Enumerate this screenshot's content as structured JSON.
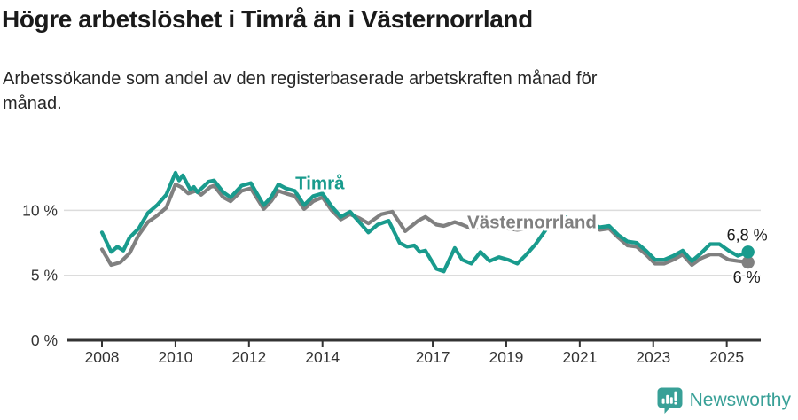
{
  "header": {
    "title": "Högre arbetslöshet i Timrå än i Västernorrland",
    "subtitle": "Arbetssökande som andel av den registerbaserade arbetskraften månad för månad."
  },
  "footer": {
    "brand": "Newsworthy",
    "brand_color": "#38a097"
  },
  "chart_data": {
    "type": "line",
    "title": "Högre arbetslöshet i Timrå än i Västernorrland",
    "subtitle": "Arbetssökande som andel av den registerbaserade arbetskraften månad för månad.",
    "xlabel": "",
    "ylabel": "",
    "legend_position": "inline-labels",
    "x_axis": {
      "ticks": [
        2008,
        2010,
        2012,
        2014,
        2017,
        2019,
        2021,
        2023,
        2025
      ],
      "range": [
        2008,
        2025.75
      ]
    },
    "y_axis": {
      "ticks": [
        {
          "value": 0,
          "label": "0 %"
        },
        {
          "value": 5,
          "label": "5 %"
        },
        {
          "value": 10,
          "label": "10 %"
        }
      ],
      "range": [
        0,
        13.6
      ],
      "grid": true
    },
    "colors": {
      "timra": "#199b8d",
      "vasternorrland": "#808080",
      "grid": "#dcdcdc",
      "axis": "#333333",
      "tick_text": "#333333",
      "end_label_text": "#1a1a1a"
    },
    "series": [
      {
        "name": "Västernorrland",
        "color": "#808080",
        "end_label": "6 %",
        "end_value": 6.0,
        "label_anchor": {
          "x": 2019.7,
          "y": 8.62
        },
        "points": [
          [
            2008.0,
            7.0
          ],
          [
            2008.25,
            5.8
          ],
          [
            2008.5,
            6.0
          ],
          [
            2008.75,
            6.7
          ],
          [
            2009.0,
            8.1
          ],
          [
            2009.25,
            9.1
          ],
          [
            2009.5,
            9.6
          ],
          [
            2009.75,
            10.2
          ],
          [
            2010.0,
            12.0
          ],
          [
            2010.15,
            11.8
          ],
          [
            2010.35,
            11.3
          ],
          [
            2010.55,
            11.5
          ],
          [
            2010.7,
            11.2
          ],
          [
            2010.95,
            11.8
          ],
          [
            2011.05,
            11.9
          ],
          [
            2011.3,
            11.0
          ],
          [
            2011.5,
            10.7
          ],
          [
            2011.8,
            11.5
          ],
          [
            2012.05,
            11.7
          ],
          [
            2012.4,
            10.1
          ],
          [
            2012.6,
            10.7
          ],
          [
            2012.8,
            11.5
          ],
          [
            2013.0,
            11.3
          ],
          [
            2013.25,
            11.1
          ],
          [
            2013.5,
            10.1
          ],
          [
            2013.75,
            10.7
          ],
          [
            2014.0,
            11.0
          ],
          [
            2014.25,
            10.0
          ],
          [
            2014.5,
            9.3
          ],
          [
            2014.75,
            9.7
          ],
          [
            2015.0,
            9.4
          ],
          [
            2015.25,
            9.0
          ],
          [
            2015.6,
            9.7
          ],
          [
            2015.9,
            9.9
          ],
          [
            2016.25,
            8.4
          ],
          [
            2016.6,
            9.2
          ],
          [
            2016.8,
            9.5
          ],
          [
            2017.1,
            8.9
          ],
          [
            2017.3,
            8.8
          ],
          [
            2017.6,
            9.1
          ],
          [
            2017.8,
            8.9
          ],
          [
            2018.05,
            8.6
          ],
          [
            2018.3,
            8.7
          ],
          [
            2018.55,
            8.9
          ],
          [
            2018.8,
            8.7
          ],
          [
            2019.05,
            8.6
          ],
          [
            2019.3,
            8.5
          ],
          [
            2019.55,
            8.6
          ],
          [
            2019.8,
            8.9
          ],
          [
            2020.05,
            9.0
          ],
          [
            2020.3,
            9.4
          ],
          [
            2020.55,
            9.5
          ],
          [
            2020.8,
            9.3
          ],
          [
            2021.05,
            9.2
          ],
          [
            2021.3,
            8.9
          ],
          [
            2021.55,
            8.5
          ],
          [
            2021.8,
            8.6
          ],
          [
            2022.05,
            7.9
          ],
          [
            2022.3,
            7.3
          ],
          [
            2022.55,
            7.2
          ],
          [
            2022.8,
            6.6
          ],
          [
            2023.05,
            5.9
          ],
          [
            2023.3,
            5.9
          ],
          [
            2023.55,
            6.2
          ],
          [
            2023.8,
            6.6
          ],
          [
            2024.05,
            5.8
          ],
          [
            2024.3,
            6.3
          ],
          [
            2024.55,
            6.6
          ],
          [
            2024.8,
            6.6
          ],
          [
            2025.05,
            6.2
          ],
          [
            2025.3,
            6.1
          ],
          [
            2025.58,
            6.0
          ]
        ]
      },
      {
        "name": "Timrå",
        "color": "#199b8d",
        "end_label": "6,8 %",
        "end_value": 6.8,
        "label_anchor": {
          "x": 2013.93,
          "y": 11.62
        },
        "points": [
          [
            2008.0,
            8.3
          ],
          [
            2008.25,
            6.8
          ],
          [
            2008.42,
            7.2
          ],
          [
            2008.58,
            6.9
          ],
          [
            2008.75,
            7.9
          ],
          [
            2009.0,
            8.6
          ],
          [
            2009.25,
            9.8
          ],
          [
            2009.5,
            10.4
          ],
          [
            2009.75,
            11.2
          ],
          [
            2010.0,
            12.9
          ],
          [
            2010.1,
            12.3
          ],
          [
            2010.2,
            12.7
          ],
          [
            2010.4,
            11.6
          ],
          [
            2010.5,
            11.8
          ],
          [
            2010.6,
            11.4
          ],
          [
            2010.9,
            12.2
          ],
          [
            2011.05,
            12.3
          ],
          [
            2011.3,
            11.4
          ],
          [
            2011.5,
            11.0
          ],
          [
            2011.8,
            11.9
          ],
          [
            2012.05,
            12.1
          ],
          [
            2012.4,
            10.4
          ],
          [
            2012.6,
            11.0
          ],
          [
            2012.8,
            12.0
          ],
          [
            2013.0,
            11.7
          ],
          [
            2013.25,
            11.5
          ],
          [
            2013.5,
            10.4
          ],
          [
            2013.75,
            11.1
          ],
          [
            2014.0,
            11.3
          ],
          [
            2014.25,
            10.3
          ],
          [
            2014.5,
            9.5
          ],
          [
            2014.75,
            9.9
          ],
          [
            2015.0,
            9.1
          ],
          [
            2015.25,
            8.3
          ],
          [
            2015.5,
            8.9
          ],
          [
            2015.8,
            9.2
          ],
          [
            2016.1,
            7.5
          ],
          [
            2016.3,
            7.2
          ],
          [
            2016.5,
            7.3
          ],
          [
            2016.65,
            6.8
          ],
          [
            2016.8,
            6.9
          ],
          [
            2017.1,
            5.5
          ],
          [
            2017.3,
            5.3
          ],
          [
            2017.6,
            7.1
          ],
          [
            2017.8,
            6.2
          ],
          [
            2018.05,
            5.9
          ],
          [
            2018.3,
            6.8
          ],
          [
            2018.55,
            6.1
          ],
          [
            2018.8,
            6.4
          ],
          [
            2019.05,
            6.2
          ],
          [
            2019.3,
            5.9
          ],
          [
            2019.55,
            6.6
          ],
          [
            2019.8,
            7.4
          ],
          [
            2020.05,
            8.4
          ],
          [
            2020.3,
            9.4
          ],
          [
            2020.55,
            9.5
          ],
          [
            2020.8,
            9.3
          ],
          [
            2021.05,
            9.4
          ],
          [
            2021.3,
            9.0
          ],
          [
            2021.55,
            8.7
          ],
          [
            2021.8,
            8.8
          ],
          [
            2022.05,
            8.1
          ],
          [
            2022.3,
            7.6
          ],
          [
            2022.55,
            7.5
          ],
          [
            2022.8,
            6.9
          ],
          [
            2023.05,
            6.2
          ],
          [
            2023.3,
            6.2
          ],
          [
            2023.55,
            6.5
          ],
          [
            2023.8,
            6.9
          ],
          [
            2024.05,
            6.1
          ],
          [
            2024.3,
            6.7
          ],
          [
            2024.55,
            7.4
          ],
          [
            2024.8,
            7.4
          ],
          [
            2025.05,
            6.9
          ],
          [
            2025.3,
            6.5
          ],
          [
            2025.58,
            6.8
          ]
        ]
      }
    ]
  }
}
